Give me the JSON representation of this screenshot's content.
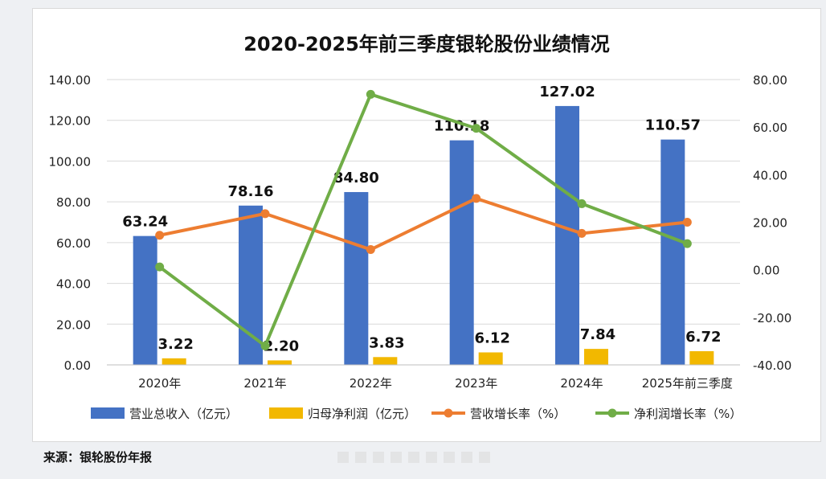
{
  "chart_data": {
    "type": "bar",
    "title": "2020-2025年前三季度银轮股份业绩情况",
    "categories": [
      "2020年",
      "2021年",
      "2022年",
      "2023年",
      "2024年",
      "2025年前三季度"
    ],
    "series": [
      {
        "name": "营业总收入（亿元）",
        "type": "bar",
        "axis": "left",
        "color": "#4472c4",
        "values": [
          63.24,
          78.16,
          84.8,
          110.18,
          127.02,
          110.57
        ],
        "labels": [
          "63.24",
          "78.16",
          "84.80",
          "110.18",
          "127.02",
          "110.57"
        ]
      },
      {
        "name": "归母净利润（亿元）",
        "type": "bar",
        "axis": "left",
        "color": "#f2b800",
        "values": [
          3.22,
          2.2,
          3.83,
          6.12,
          7.84,
          6.72
        ],
        "labels": [
          "3.22",
          "2.20",
          "3.83",
          "6.12",
          "7.84",
          "6.72"
        ]
      },
      {
        "name": "营收增长率（%）",
        "type": "line",
        "axis": "right",
        "color": "#ed7d31",
        "values": [
          14.5,
          23.6,
          8.5,
          30.0,
          15.3,
          20.0
        ]
      },
      {
        "name": "净利润增长率（%）",
        "type": "line",
        "axis": "right",
        "color": "#70ad47",
        "values": [
          1.2,
          -32.0,
          73.8,
          59.5,
          27.8,
          11.0
        ]
      }
    ],
    "y_left": {
      "min": 0,
      "max": 140,
      "ticks": [
        "0.00",
        "20.00",
        "40.00",
        "60.00",
        "80.00",
        "100.00",
        "120.00",
        "140.00"
      ]
    },
    "y_right": {
      "min": -40,
      "max": 80,
      "ticks": [
        "-40.00",
        "-20.00",
        "0.00",
        "20.00",
        "40.00",
        "60.00",
        "80.00"
      ]
    },
    "grid": true,
    "legend_position": "bottom"
  },
  "footer": {
    "source": "来源：银轮股份年报"
  }
}
